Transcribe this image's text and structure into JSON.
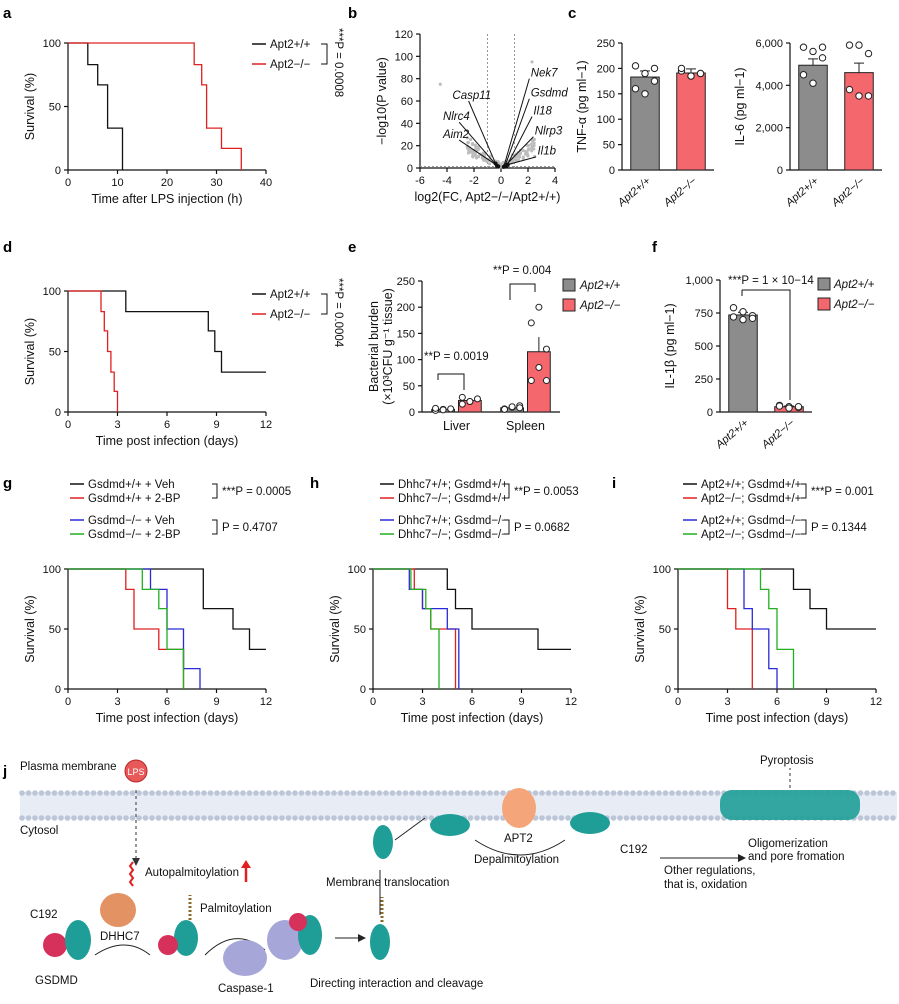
{
  "panels": {
    "a": {
      "label": "a",
      "type": "survival",
      "xlabel": "Time after LPS injection (h)",
      "ylabel": "Survival (%)",
      "xlim": [
        0,
        40
      ],
      "xticks": [
        0,
        10,
        20,
        30,
        40
      ],
      "ylim": [
        0,
        100
      ],
      "yticks": [
        0,
        50,
        100
      ],
      "series": [
        {
          "name": "Apt2+/+",
          "color": "#111111",
          "steps": [
            [
              0,
              100
            ],
            [
              4,
              100
            ],
            [
              4,
              83
            ],
            [
              6,
              83
            ],
            [
              6,
              67
            ],
            [
              8,
              67
            ],
            [
              8,
              33
            ],
            [
              11,
              33
            ],
            [
              11,
              0
            ]
          ]
        },
        {
          "name": "Apt2−/−",
          "color": "#e02020",
          "steps": [
            [
              0,
              100
            ],
            [
              25.5,
              100
            ],
            [
              25.5,
              83
            ],
            [
              27,
              83
            ],
            [
              27,
              67
            ],
            [
              28,
              67
            ],
            [
              28,
              33
            ],
            [
              31,
              33
            ],
            [
              31,
              17
            ],
            [
              35,
              17
            ],
            [
              35,
              0
            ]
          ]
        }
      ],
      "pvalue": "***P = 0.0008"
    },
    "b": {
      "label": "b",
      "type": "volcano",
      "xlabel": "log2(FC, Apt2−/−/Apt2+/+)",
      "ylabel": "−log10(P value)",
      "xlim": [
        -6,
        4
      ],
      "xticks": [
        -6,
        -4,
        -2,
        0,
        2,
        4
      ],
      "ylim": [
        0,
        120
      ],
      "yticks": [
        0,
        20,
        40,
        60,
        80,
        100,
        120
      ],
      "genes": [
        {
          "name": "Casp11",
          "x": -0.4,
          "y": 4,
          "lx": -3.6,
          "ly": 62
        },
        {
          "name": "Nlrc4",
          "x": -0.3,
          "y": 2,
          "lx": -4.3,
          "ly": 43
        },
        {
          "name": "Aim2",
          "x": -0.2,
          "y": 1.5,
          "lx": -4.3,
          "ly": 27
        },
        {
          "name": "Nek7",
          "x": 0.2,
          "y": 1,
          "lx": 2.2,
          "ly": 82
        },
        {
          "name": "Gsdmd",
          "x": 0.3,
          "y": 2,
          "lx": 2.2,
          "ly": 64
        },
        {
          "name": "Il18",
          "x": 0.4,
          "y": 1.5,
          "lx": 2.4,
          "ly": 48
        },
        {
          "name": "Nlrp3",
          "x": 0.35,
          "y": 2.5,
          "lx": 2.5,
          "ly": 30
        },
        {
          "name": "Il1b",
          "x": 0.5,
          "y": 3,
          "lx": 2.7,
          "ly": 12
        }
      ]
    },
    "c1": {
      "label": "c",
      "type": "bar",
      "ylabel": "TNF-α (pg ml−1)",
      "ylim": [
        0,
        250
      ],
      "yticks": [
        0,
        50,
        100,
        150,
        200,
        250
      ],
      "categories": [
        "Apt2+/+",
        "Apt2−/−"
      ],
      "values": [
        183,
        191
      ],
      "errors": [
        12,
        8
      ],
      "points": [
        [
          205,
          190,
          175,
          160,
          150,
          200
        ],
        [
          195,
          185,
          190,
          200,
          185,
          190
        ]
      ],
      "colors": [
        "#8c8c8c",
        "#f4676c"
      ]
    },
    "c2": {
      "type": "bar",
      "ylabel": "IL-6 (pg ml−1)",
      "ylim": [
        0,
        6000
      ],
      "yticks": [
        0,
        2000,
        4000,
        6000
      ],
      "yticklabels": [
        "0",
        "2,000",
        "4,000",
        "6,000"
      ],
      "categories": [
        "Apt2+/+",
        "Apt2−/−"
      ],
      "values": [
        4950,
        4600
      ],
      "errors": [
        300,
        450
      ],
      "points": [
        [
          5800,
          5600,
          5300,
          4500,
          4100,
          5800
        ],
        [
          5900,
          5900,
          5500,
          3800,
          3500,
          3500
        ]
      ],
      "colors": [
        "#8c8c8c",
        "#f4676c"
      ]
    },
    "d": {
      "label": "d",
      "type": "survival",
      "xlabel": "Time post infection (days)",
      "ylabel": "Survival (%)",
      "xlim": [
        0,
        12
      ],
      "xticks": [
        0,
        3,
        6,
        9,
        12
      ],
      "ylim": [
        0,
        100
      ],
      "yticks": [
        0,
        50,
        100
      ],
      "series": [
        {
          "name": "Apt2+/+",
          "color": "#111111",
          "steps": [
            [
              0,
              100
            ],
            [
              3.5,
              100
            ],
            [
              3.5,
              83
            ],
            [
              8.5,
              83
            ],
            [
              8.5,
              67
            ],
            [
              8.9,
              67
            ],
            [
              8.9,
              50
            ],
            [
              9.3,
              50
            ],
            [
              9.3,
              33
            ],
            [
              12,
              33
            ]
          ]
        },
        {
          "name": "Apt2−/−",
          "color": "#e02020",
          "steps": [
            [
              0,
              100
            ],
            [
              2,
              100
            ],
            [
              2,
              83
            ],
            [
              2.2,
              83
            ],
            [
              2.2,
              67
            ],
            [
              2.4,
              67
            ],
            [
              2.4,
              50
            ],
            [
              2.6,
              50
            ],
            [
              2.6,
              33
            ],
            [
              2.8,
              33
            ],
            [
              2.8,
              17
            ],
            [
              3,
              17
            ],
            [
              3,
              0
            ]
          ]
        }
      ],
      "pvalue": "***P = 0.0004"
    },
    "e": {
      "label": "e",
      "type": "bar",
      "ylabel": "Bacterial burden",
      "ylabel2": "(×10³CFU g⁻¹ tissue)",
      "ylim": [
        0,
        250
      ],
      "yticks": [
        0,
        50,
        100,
        150,
        200,
        250
      ],
      "categories": [
        "Liver",
        "Spleen"
      ],
      "series": [
        {
          "name": "Apt2+/+",
          "color": "#8c8c8c",
          "values": [
            5,
            8
          ],
          "errors": [
            1,
            2
          ],
          "points": [
            [
              3,
              5,
              6,
              7,
              4
            ],
            [
              6,
              9,
              12,
              5,
              10,
              8
            ]
          ]
        },
        {
          "name": "Apt2−/−",
          "color": "#f4676c",
          "values": [
            22,
            115
          ],
          "errors": [
            4,
            28
          ],
          "points": [
            [
              15,
              20,
              25,
              28,
              20
            ],
            [
              60,
              85,
              120,
              170,
              200,
              60
            ]
          ]
        }
      ],
      "pvalues": [
        "**P = 0.0019",
        "**P = 0.004"
      ]
    },
    "f": {
      "label": "f",
      "type": "bar",
      "ylabel": "IL-1β (pg ml−1)",
      "ylim": [
        0,
        1000
      ],
      "yticks": [
        0,
        250,
        500,
        750,
        1000
      ],
      "yticklabels": [
        "0",
        "250",
        "500",
        "750",
        "1,000"
      ],
      "categories": [
        "Apt2+/+",
        "Apt2−/−"
      ],
      "values": [
        735,
        40
      ],
      "errors": [
        20,
        5
      ],
      "points": [
        [
          790,
          760,
          730,
          720,
          700,
          710
        ],
        [
          50,
          40,
          35,
          45,
          30,
          40
        ]
      ],
      "colors": [
        "#8c8c8c",
        "#f4676c"
      ],
      "pvalue": "***P = 1 × 10−14",
      "legend": [
        "Apt2+/+",
        "Apt2−/−"
      ]
    },
    "g": {
      "label": "g",
      "type": "survival",
      "xlabel": "Time post infection (days)",
      "ylabel": "Survival (%)",
      "xlim": [
        0,
        12
      ],
      "xticks": [
        0,
        3,
        6,
        9,
        12
      ],
      "ylim": [
        0,
        100
      ],
      "yticks": [
        0,
        50,
        100
      ],
      "series": [
        {
          "name": "Gsdmd+/+ + Veh",
          "color": "#111111",
          "steps": [
            [
              0,
              100
            ],
            [
              8.2,
              100
            ],
            [
              8.2,
              67
            ],
            [
              10,
              67
            ],
            [
              10,
              50
            ],
            [
              11,
              50
            ],
            [
              11,
              33
            ],
            [
              12,
              33
            ]
          ]
        },
        {
          "name": "Gsdmd+/+ + 2-BP",
          "color": "#e02020",
          "steps": [
            [
              0,
              100
            ],
            [
              3.5,
              100
            ],
            [
              3.5,
              83
            ],
            [
              4,
              83
            ],
            [
              4,
              50
            ],
            [
              5.5,
              50
            ],
            [
              5.5,
              33
            ],
            [
              7,
              33
            ],
            [
              7,
              0
            ]
          ]
        },
        {
          "name": "Gsdmd−/− + Veh",
          "color": "#2a2ad8",
          "steps": [
            [
              0,
              100
            ],
            [
              5,
              100
            ],
            [
              5,
              83
            ],
            [
              6,
              83
            ],
            [
              6,
              50
            ],
            [
              7,
              50
            ],
            [
              7,
              17
            ],
            [
              8,
              17
            ],
            [
              8,
              0
            ]
          ]
        },
        {
          "name": "Gsdmd−/− + 2-BP",
          "color": "#20b020",
          "steps": [
            [
              0,
              100
            ],
            [
              4.5,
              100
            ],
            [
              4.5,
              83
            ],
            [
              5.5,
              83
            ],
            [
              5.5,
              67
            ],
            [
              6,
              67
            ],
            [
              6,
              33
            ],
            [
              7,
              33
            ],
            [
              7,
              0
            ]
          ]
        }
      ],
      "pvalues": [
        "***P = 0.0005",
        "P = 0.4707"
      ]
    },
    "h": {
      "label": "h",
      "type": "survival",
      "xlabel": "Time post infection (days)",
      "ylabel": "Survival (%)",
      "xlim": [
        0,
        12
      ],
      "xticks": [
        0,
        3,
        6,
        9,
        12
      ],
      "ylim": [
        0,
        100
      ],
      "yticks": [
        0,
        50,
        100
      ],
      "series": [
        {
          "name": "Dhhc7+/+; Gsdmd+/+",
          "color": "#111111",
          "steps": [
            [
              0,
              100
            ],
            [
              4.5,
              100
            ],
            [
              4.5,
              83
            ],
            [
              5,
              83
            ],
            [
              5,
              67
            ],
            [
              6,
              67
            ],
            [
              6,
              50
            ],
            [
              10,
              50
            ],
            [
              10,
              33
            ],
            [
              12,
              33
            ]
          ]
        },
        {
          "name": "Dhhc7−/−; Gsdmd+/+",
          "color": "#e02020",
          "steps": [
            [
              0,
              100
            ],
            [
              2.5,
              100
            ],
            [
              2.5,
              83
            ],
            [
              3,
              83
            ],
            [
              3,
              67
            ],
            [
              3.5,
              67
            ],
            [
              3.5,
              50
            ],
            [
              5,
              50
            ],
            [
              5,
              0
            ]
          ]
        },
        {
          "name": "Dhhc7+/+; Gsdmd−/−",
          "color": "#2a2ad8",
          "steps": [
            [
              0,
              100
            ],
            [
              2.2,
              100
            ],
            [
              2.2,
              83
            ],
            [
              3,
              83
            ],
            [
              3,
              67
            ],
            [
              4.5,
              67
            ],
            [
              4.5,
              50
            ],
            [
              5.2,
              50
            ],
            [
              5.2,
              0
            ]
          ]
        },
        {
          "name": "Dhhc7−/−; Gsdmd−/−",
          "color": "#20b020",
          "steps": [
            [
              0,
              100
            ],
            [
              2.3,
              100
            ],
            [
              2.3,
              83
            ],
            [
              3.2,
              83
            ],
            [
              3.2,
              67
            ],
            [
              3.5,
              67
            ],
            [
              3.5,
              50
            ],
            [
              4,
              50
            ],
            [
              4,
              0
            ]
          ]
        }
      ],
      "pvalues": [
        "**P = 0.0053",
        "P = 0.0682"
      ]
    },
    "i": {
      "label": "i",
      "type": "survival",
      "xlabel": "Time post infection (days)",
      "ylabel": "Survival (%)",
      "xlim": [
        0,
        12
      ],
      "xticks": [
        0,
        3,
        6,
        9,
        12
      ],
      "ylim": [
        0,
        100
      ],
      "yticks": [
        0,
        50,
        100
      ],
      "series": [
        {
          "name": "Apt2+/+; Gsdmd+/+",
          "color": "#111111",
          "steps": [
            [
              0,
              100
            ],
            [
              7,
              100
            ],
            [
              7,
              83
            ],
            [
              8,
              83
            ],
            [
              8,
              67
            ],
            [
              9,
              67
            ],
            [
              9,
              50
            ],
            [
              12,
              50
            ]
          ]
        },
        {
          "name": "Apt2−/−; Gsdmd+/+",
          "color": "#e02020",
          "steps": [
            [
              0,
              100
            ],
            [
              3,
              100
            ],
            [
              3,
              67
            ],
            [
              3.5,
              67
            ],
            [
              3.5,
              50
            ],
            [
              4.5,
              50
            ],
            [
              4.5,
              0
            ]
          ]
        },
        {
          "name": "Apt2+/+; Gsdmd−/−",
          "color": "#2a2ad8",
          "steps": [
            [
              0,
              100
            ],
            [
              4,
              100
            ],
            [
              4,
              67
            ],
            [
              4.5,
              67
            ],
            [
              4.5,
              50
            ],
            [
              5.5,
              50
            ],
            [
              5.5,
              17
            ],
            [
              6,
              17
            ],
            [
              6,
              0
            ]
          ]
        },
        {
          "name": "Apt2−/−; Gsdmd−/−",
          "color": "#20b020",
          "steps": [
            [
              0,
              100
            ],
            [
              5,
              100
            ],
            [
              5,
              83
            ],
            [
              5.5,
              83
            ],
            [
              5.5,
              67
            ],
            [
              6,
              67
            ],
            [
              6,
              33
            ],
            [
              7,
              33
            ],
            [
              7,
              0
            ]
          ]
        }
      ],
      "pvalues": [
        "***P = 0.001",
        "P = 0.1344"
      ]
    }
  },
  "diagram": {
    "label": "j",
    "plasma_membrane": "Plasma membrane",
    "cytosol": "Cytosol",
    "lps": "LPS",
    "autopalmitoylation": "Autopalmitoylation",
    "c192_left": "C192",
    "dhhc7": "DHHC7",
    "gsdmd": "GSDMD",
    "palmitoylation": "Palmitoylation",
    "caspase": "Caspase-1",
    "directing": "Directing interaction and cleavage",
    "membrane_translocation": "Membrane translocation",
    "apt2": "APT2",
    "depalmitoylation": "Depalmitoylation",
    "c192_right": "C192",
    "other_reg": "Other regulations,",
    "other_reg2": "that is, oxidation",
    "oligomerization": "Oligomerization",
    "pore": "and pore fromation",
    "pyroptosis": "Pyroptosis"
  }
}
